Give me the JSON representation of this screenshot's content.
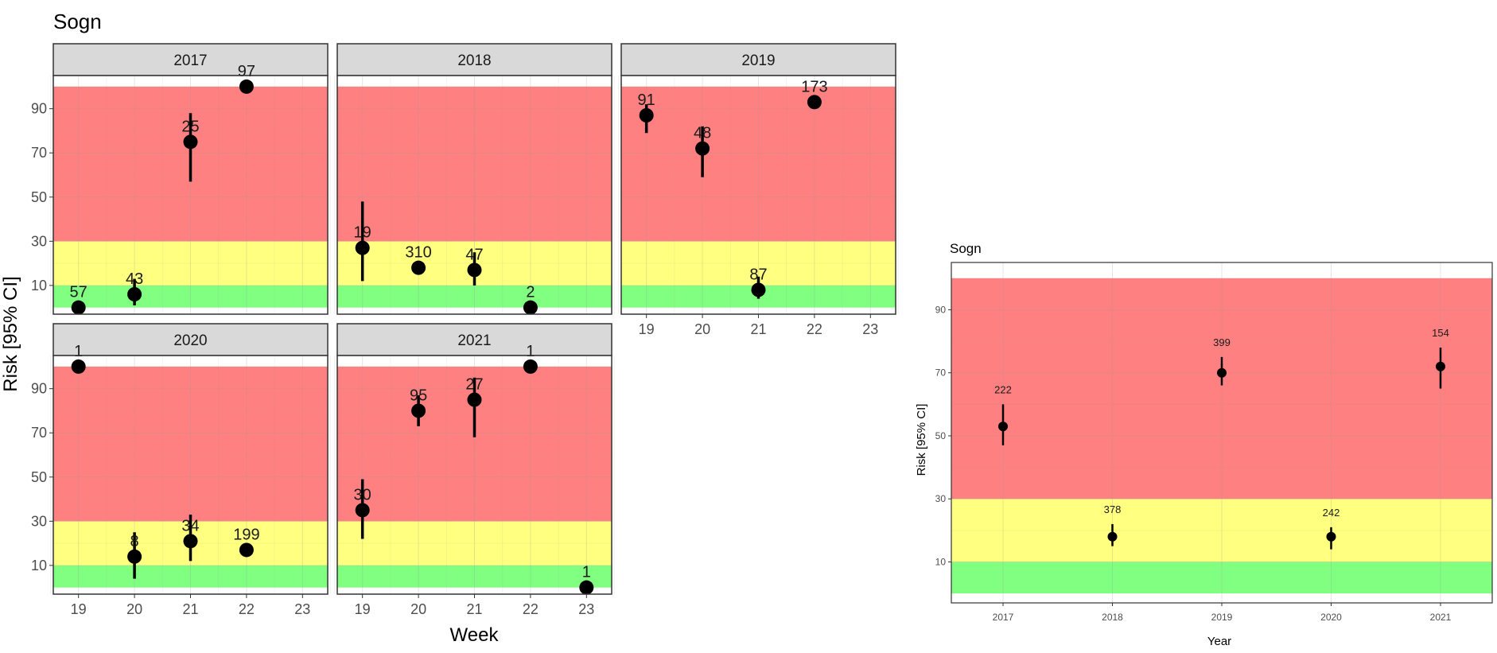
{
  "chart_data": [
    {
      "type": "scatter",
      "subtype": "point-range facets",
      "title": "Sogn",
      "xlabel": "Week",
      "ylabel": "Risk [95% CI]",
      "x_ticks": [
        19,
        20,
        21,
        22,
        23
      ],
      "y_ticks": [
        10,
        30,
        50,
        70,
        90
      ],
      "xlim": [
        18.55,
        23.45
      ],
      "ylim": [
        -3,
        105
      ],
      "grid": true,
      "bands": [
        {
          "name": "green",
          "from": 0,
          "to": 10,
          "color": "#80ff80"
        },
        {
          "name": "yellow",
          "from": 10,
          "to": 30,
          "color": "#ffff80"
        },
        {
          "name": "red",
          "from": 30,
          "to": 100,
          "color": "#ff8080"
        }
      ],
      "panels": [
        {
          "label": "2017",
          "points": [
            {
              "x": 19,
              "y": 0,
              "lo": 0,
              "hi": 0,
              "n": "57"
            },
            {
              "x": 20,
              "y": 6,
              "lo": 1,
              "hi": 13,
              "n": "43"
            },
            {
              "x": 21,
              "y": 75,
              "lo": 57,
              "hi": 88,
              "n": "25"
            },
            {
              "x": 22,
              "y": 100,
              "lo": 100,
              "hi": 100,
              "n": "97"
            }
          ]
        },
        {
          "label": "2018",
          "points": [
            {
              "x": 19,
              "y": 27,
              "lo": 12,
              "hi": 48,
              "n": "19"
            },
            {
              "x": 20,
              "y": 18,
              "lo": 16,
              "hi": 20,
              "n": "310"
            },
            {
              "x": 21,
              "y": 17,
              "lo": 10,
              "hi": 25,
              "n": "47"
            },
            {
              "x": 22,
              "y": 0,
              "lo": 0,
              "hi": 0,
              "n": "2"
            }
          ]
        },
        {
          "label": "2019",
          "points": [
            {
              "x": 19,
              "y": 87,
              "lo": 79,
              "hi": 92,
              "n": "91"
            },
            {
              "x": 20,
              "y": 72,
              "lo": 59,
              "hi": 82,
              "n": "48"
            },
            {
              "x": 21,
              "y": 8,
              "lo": 4,
              "hi": 14,
              "n": "87"
            },
            {
              "x": 22,
              "y": 93,
              "lo": 90,
              "hi": 95,
              "n": "173"
            }
          ]
        },
        {
          "label": "2020",
          "points": [
            {
              "x": 19,
              "y": 100,
              "lo": 100,
              "hi": 100,
              "n": "1"
            },
            {
              "x": 20,
              "y": 14,
              "lo": 4,
              "hi": 25,
              "n": "8"
            },
            {
              "x": 21,
              "y": 21,
              "lo": 12,
              "hi": 33,
              "n": "34"
            },
            {
              "x": 22,
              "y": 17,
              "lo": 14,
              "hi": 20,
              "n": "199"
            }
          ]
        },
        {
          "label": "2021",
          "points": [
            {
              "x": 19,
              "y": 35,
              "lo": 22,
              "hi": 49,
              "n": "30"
            },
            {
              "x": 20,
              "y": 80,
              "lo": 73,
              "hi": 87,
              "n": "95"
            },
            {
              "x": 21,
              "y": 85,
              "lo": 68,
              "hi": 95,
              "n": "27"
            },
            {
              "x": 22,
              "y": 100,
              "lo": 100,
              "hi": 100,
              "n": "1"
            },
            {
              "x": 23,
              "y": 0,
              "lo": 0,
              "hi": 0,
              "n": "1"
            }
          ]
        }
      ]
    },
    {
      "type": "scatter",
      "subtype": "point-range",
      "title": "Sogn",
      "xlabel": "Year",
      "ylabel": "Risk [95% CI]",
      "categories": [
        "2017",
        "2018",
        "2019",
        "2020",
        "2021"
      ],
      "y_ticks": [
        10,
        30,
        50,
        70,
        90
      ],
      "ylim": [
        -3,
        105
      ],
      "grid": true,
      "bands": [
        {
          "name": "green",
          "from": 0,
          "to": 10,
          "color": "#80ff80"
        },
        {
          "name": "yellow",
          "from": 10,
          "to": 30,
          "color": "#ffff80"
        },
        {
          "name": "red",
          "from": 30,
          "to": 100,
          "color": "#ff8080"
        }
      ],
      "points": [
        {
          "x": "2017",
          "y": 53,
          "lo": 47,
          "hi": 60,
          "n": "222"
        },
        {
          "x": "2018",
          "y": 18,
          "lo": 15,
          "hi": 22,
          "n": "378"
        },
        {
          "x": "2019",
          "y": 70,
          "lo": 66,
          "hi": 75,
          "n": "399"
        },
        {
          "x": "2020",
          "y": 18,
          "lo": 14,
          "hi": 21,
          "n": "242"
        },
        {
          "x": "2021",
          "y": 72,
          "lo": 65,
          "hi": 78,
          "n": "154"
        }
      ]
    }
  ]
}
